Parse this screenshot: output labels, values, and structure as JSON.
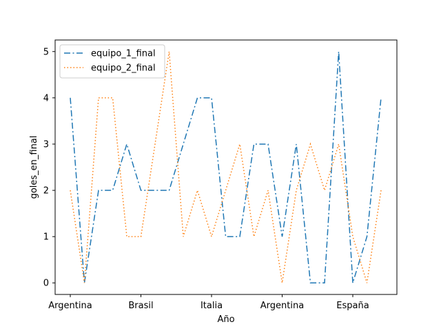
{
  "chart_data": {
    "type": "line",
    "xlabel": "Año",
    "ylabel": "goles_en_final",
    "xtick_labels": [
      "Argentina",
      "Brasil",
      "Italia",
      "Argentina",
      "España"
    ],
    "ytick_labels": [
      "0",
      "1",
      "2",
      "3",
      "4",
      "5"
    ],
    "y_ticks": [
      0,
      1,
      2,
      3,
      4,
      5
    ],
    "ylim": [
      -0.25,
      5.25
    ],
    "grid": false,
    "legend_position": "top-left",
    "series": [
      {
        "name": "equipo_1_final",
        "color": "#1f77b4",
        "style": "dashdot",
        "values": [
          4,
          0,
          2,
          2,
          3,
          2,
          2,
          2,
          3,
          4,
          4,
          1,
          1,
          3,
          3,
          1,
          3,
          0,
          0,
          5,
          0,
          1,
          4
        ]
      },
      {
        "name": "equipo_2_final",
        "color": "#ff7f0e",
        "style": "dotted",
        "values": [
          2,
          0,
          4,
          4,
          1,
          1,
          3,
          5,
          1,
          2,
          1,
          2,
          3,
          1,
          2,
          0,
          2,
          3,
          2,
          3,
          1,
          0,
          2
        ]
      }
    ]
  }
}
